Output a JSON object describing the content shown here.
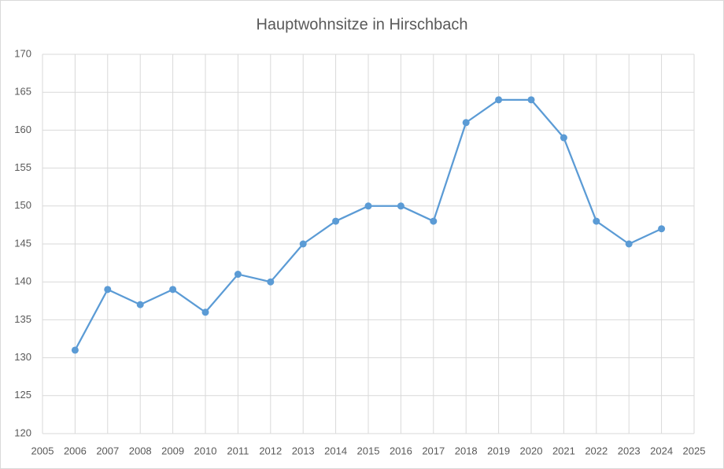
{
  "chart_data": {
    "type": "line",
    "title": "Hauptwohnsitze in Hirschbach",
    "x": [
      2006,
      2007,
      2008,
      2009,
      2010,
      2011,
      2012,
      2013,
      2014,
      2015,
      2016,
      2017,
      2018,
      2019,
      2020,
      2021,
      2022,
      2023,
      2024
    ],
    "values": [
      131,
      139,
      137,
      139,
      136,
      141,
      140,
      145,
      148,
      150,
      150,
      148,
      161,
      164,
      164,
      159,
      148,
      145,
      147
    ],
    "color": "#5b9bd5",
    "xlim": [
      2005,
      2025
    ],
    "xticks": [
      2005,
      2006,
      2007,
      2008,
      2009,
      2010,
      2011,
      2012,
      2013,
      2014,
      2015,
      2016,
      2017,
      2018,
      2019,
      2020,
      2021,
      2022,
      2023,
      2024,
      2025
    ],
    "ylim": [
      120,
      170
    ],
    "yticks": [
      120,
      125,
      130,
      135,
      140,
      145,
      150,
      155,
      160,
      165,
      170
    ],
    "grid": true
  }
}
